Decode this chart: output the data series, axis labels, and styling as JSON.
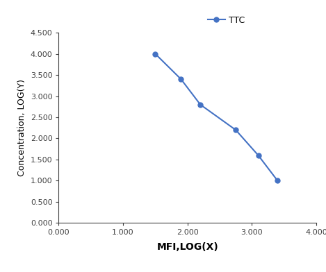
{
  "x": [
    1.5,
    1.9,
    2.2,
    2.75,
    3.1,
    3.4
  ],
  "y": [
    4.0,
    3.4,
    2.8,
    2.2,
    1.6,
    1.0
  ],
  "line_color": "#4472C4",
  "marker": "o",
  "marker_size": 5,
  "line_width": 1.5,
  "label": "TTC",
  "xlabel": "MFI,LOG(X)",
  "ylabel": "Concentration, LOG(Y)",
  "xlim": [
    0.0,
    4.0
  ],
  "ylim": [
    0.0,
    4.5
  ],
  "xticks": [
    0.0,
    1.0,
    2.0,
    3.0,
    4.0
  ],
  "yticks": [
    0.0,
    0.5,
    1.0,
    1.5,
    2.0,
    2.5,
    3.0,
    3.5,
    4.0,
    4.5
  ],
  "xlabel_fontsize": 10,
  "ylabel_fontsize": 9,
  "legend_fontsize": 9,
  "tick_fontsize": 8,
  "tick_color": "#404040",
  "spine_color": "#404040",
  "background_color": "#ffffff"
}
